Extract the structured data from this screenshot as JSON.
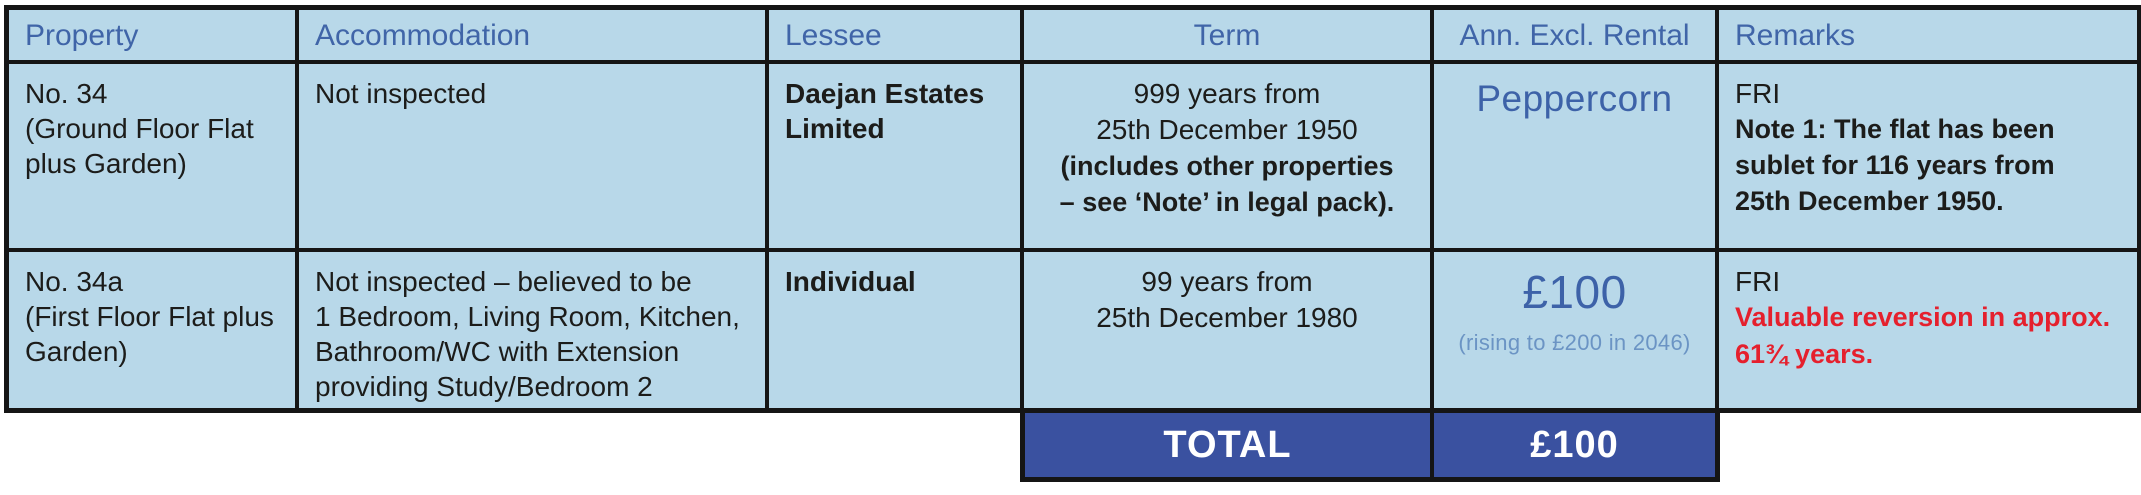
{
  "colors": {
    "cell_background": "#b8d8e9",
    "header_text_blue": "#4065a8",
    "accent_blue": "#3d62a8",
    "rental_note_blue": "#6b94c4",
    "total_band_blue": "#3a51a0",
    "alert_red": "#e5202d",
    "grid_black": "#151515",
    "body_text": "#1c1c1a"
  },
  "table": {
    "headers": {
      "property": "Property",
      "accommodation": "Accommodation",
      "lessee": "Lessee",
      "term": "Term",
      "rental": "Ann. Excl. Rental",
      "remarks": "Remarks"
    },
    "rows": [
      {
        "property": "No. 34\n(Ground Floor Flat\nplus Garden)",
        "accommodation": "Not inspected",
        "lessee": "Daejan Estates\nLimited",
        "term_plain": "999 years from\n25th December 1950",
        "term_bold": "(includes other properties\n– see ‘Note’ in legal pack).",
        "rental_main": "Peppercorn",
        "remarks_plain": "FRI",
        "remarks_bold": "Note 1: The flat has been\nsublet for 116 years from\n25th December 1950."
      },
      {
        "property": "No. 34a\n(First Floor Flat plus\nGarden)",
        "accommodation": "Not inspected – believed to be\n1 Bedroom, Living Room, Kitchen,\nBathroom/WC with Extension\nproviding Study/Bedroom 2",
        "lessee": "Individual",
        "term_plain": "99 years from\n25th December 1980",
        "rental_main": "£100",
        "rental_note": "(rising to £200 in 2046)",
        "remarks_plain": "FRI",
        "remarks_bold": "Valuable reversion in approx.\n61¾ years."
      }
    ],
    "total_row": {
      "label": "TOTAL",
      "value": "£100"
    }
  }
}
